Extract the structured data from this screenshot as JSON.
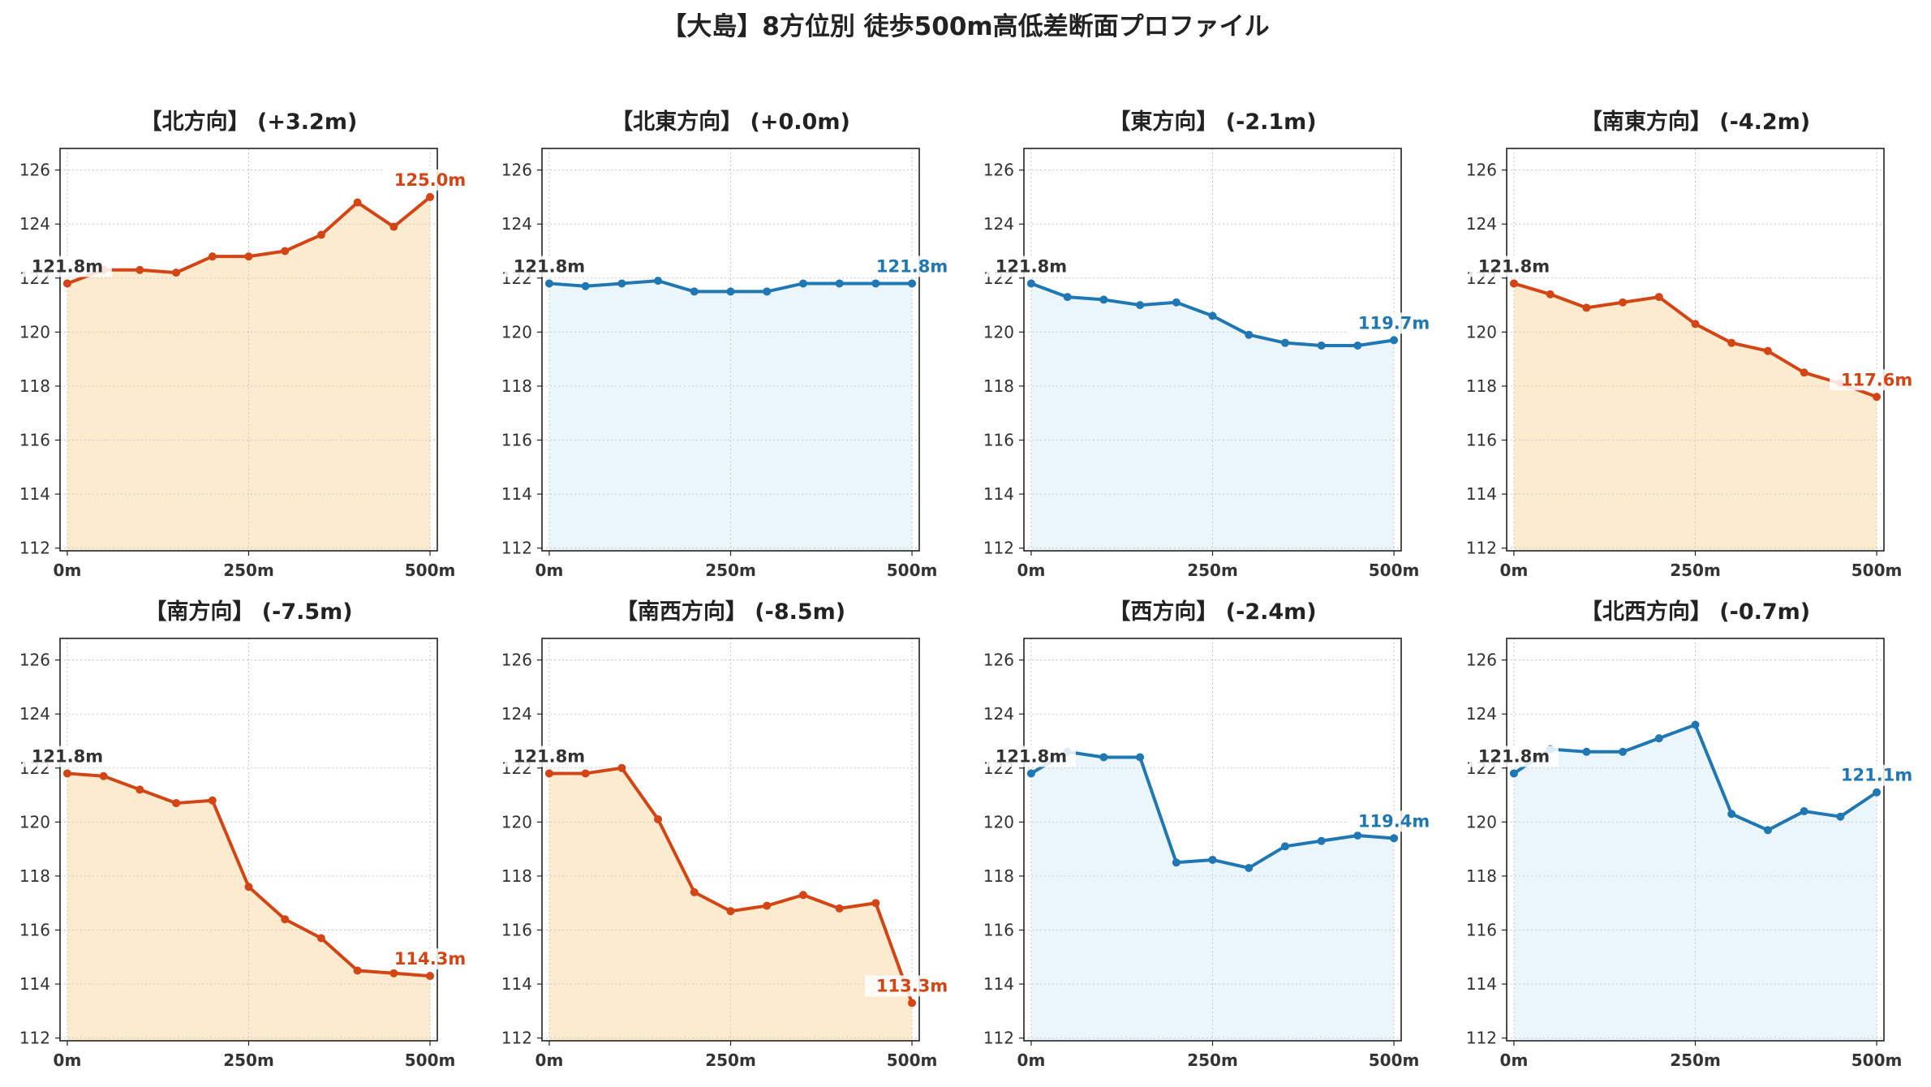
{
  "title": "【大島】8方位別 徒歩500m高低差断面プロファイル",
  "colors": {
    "up_line": "#d44515",
    "up_fill": "#fdebd0",
    "down_line": "#1f77b4",
    "down_fill": "#eaf6fb",
    "start_label": "#333333"
  },
  "chart_data": [
    {
      "type": "area",
      "title": "【北方向】 (+3.2m)",
      "trend": "up",
      "x": [
        0,
        50,
        100,
        150,
        200,
        250,
        300,
        350,
        400,
        450,
        500
      ],
      "y": [
        121.8,
        122.3,
        122.3,
        122.2,
        122.8,
        122.8,
        123.0,
        123.6,
        124.8,
        123.9,
        125.0
      ],
      "start_label": "121.8m",
      "end_label": "125.0m",
      "xticks": [
        "0m",
        "250m",
        "500m"
      ],
      "yticks": [
        112,
        114,
        116,
        118,
        120,
        122,
        124,
        126
      ],
      "ylim": [
        111.9,
        126.8
      ],
      "xlim": [
        -10,
        510
      ],
      "grid": true
    },
    {
      "type": "area",
      "title": "【北東方向】 (+0.0m)",
      "trend": "down",
      "x": [
        0,
        50,
        100,
        150,
        200,
        250,
        300,
        350,
        400,
        450,
        500
      ],
      "y": [
        121.8,
        121.7,
        121.8,
        121.9,
        121.5,
        121.5,
        121.5,
        121.8,
        121.8,
        121.8,
        121.8
      ],
      "start_label": "121.8m",
      "end_label": "121.8m",
      "xticks": [
        "0m",
        "250m",
        "500m"
      ],
      "yticks": [
        112,
        114,
        116,
        118,
        120,
        122,
        124,
        126
      ],
      "ylim": [
        111.9,
        126.8
      ],
      "xlim": [
        -10,
        510
      ],
      "grid": true
    },
    {
      "type": "area",
      "title": "【東方向】 (-2.1m)",
      "trend": "down",
      "x": [
        0,
        50,
        100,
        150,
        200,
        250,
        300,
        350,
        400,
        450,
        500
      ],
      "y": [
        121.8,
        121.3,
        121.2,
        121.0,
        121.1,
        120.6,
        119.9,
        119.6,
        119.5,
        119.5,
        119.7
      ],
      "start_label": "121.8m",
      "end_label": "119.7m",
      "xticks": [
        "0m",
        "250m",
        "500m"
      ],
      "yticks": [
        112,
        114,
        116,
        118,
        120,
        122,
        124,
        126
      ],
      "ylim": [
        111.9,
        126.8
      ],
      "xlim": [
        -10,
        510
      ],
      "grid": true
    },
    {
      "type": "area",
      "title": "【南東方向】 (-4.2m)",
      "trend": "up",
      "x": [
        0,
        50,
        100,
        150,
        200,
        250,
        300,
        350,
        400,
        450,
        500
      ],
      "y": [
        121.8,
        121.4,
        120.9,
        121.1,
        121.3,
        120.3,
        119.6,
        119.3,
        118.5,
        118.1,
        117.6
      ],
      "start_label": "121.8m",
      "end_label": "117.6m",
      "xticks": [
        "0m",
        "250m",
        "500m"
      ],
      "yticks": [
        112,
        114,
        116,
        118,
        120,
        122,
        124,
        126
      ],
      "ylim": [
        111.9,
        126.8
      ],
      "xlim": [
        -10,
        510
      ],
      "grid": true
    },
    {
      "type": "area",
      "title": "【南方向】 (-7.5m)",
      "trend": "up",
      "x": [
        0,
        50,
        100,
        150,
        200,
        250,
        300,
        350,
        400,
        450,
        500
      ],
      "y": [
        121.8,
        121.7,
        121.2,
        120.7,
        120.8,
        117.6,
        116.4,
        115.7,
        114.5,
        114.4,
        114.3
      ],
      "start_label": "121.8m",
      "end_label": "114.3m",
      "xticks": [
        "0m",
        "250m",
        "500m"
      ],
      "yticks": [
        112,
        114,
        116,
        118,
        120,
        122,
        124,
        126
      ],
      "ylim": [
        111.9,
        126.8
      ],
      "xlim": [
        -10,
        510
      ],
      "grid": true
    },
    {
      "type": "area",
      "title": "【南西方向】 (-8.5m)",
      "trend": "up",
      "x": [
        0,
        50,
        100,
        150,
        200,
        250,
        300,
        350,
        400,
        450,
        500
      ],
      "y": [
        121.8,
        121.8,
        122.0,
        120.1,
        117.4,
        116.7,
        116.9,
        117.3,
        116.8,
        117.0,
        113.3
      ],
      "start_label": "121.8m",
      "end_label": "113.3m",
      "xticks": [
        "0m",
        "250m",
        "500m"
      ],
      "yticks": [
        112,
        114,
        116,
        118,
        120,
        122,
        124,
        126
      ],
      "ylim": [
        111.9,
        126.8
      ],
      "xlim": [
        -10,
        510
      ],
      "grid": true
    },
    {
      "type": "area",
      "title": "【西方向】 (-2.4m)",
      "trend": "down",
      "x": [
        0,
        50,
        100,
        150,
        200,
        250,
        300,
        350,
        400,
        450,
        500
      ],
      "y": [
        121.8,
        122.6,
        122.4,
        122.4,
        118.5,
        118.6,
        118.3,
        119.1,
        119.3,
        119.5,
        119.4
      ],
      "start_label": "121.8m",
      "end_label": "119.4m",
      "xticks": [
        "0m",
        "250m",
        "500m"
      ],
      "yticks": [
        112,
        114,
        116,
        118,
        120,
        122,
        124,
        126
      ],
      "ylim": [
        111.9,
        126.8
      ],
      "xlim": [
        -10,
        510
      ],
      "grid": true
    },
    {
      "type": "area",
      "title": "【北西方向】 (-0.7m)",
      "trend": "down",
      "x": [
        0,
        50,
        100,
        150,
        200,
        250,
        300,
        350,
        400,
        450,
        500
      ],
      "y": [
        121.8,
        122.7,
        122.6,
        122.6,
        123.1,
        123.6,
        120.3,
        119.7,
        120.4,
        120.2,
        121.1
      ],
      "start_label": "121.8m",
      "end_label": "121.1m",
      "xticks": [
        "0m",
        "250m",
        "500m"
      ],
      "yticks": [
        112,
        114,
        116,
        118,
        120,
        122,
        124,
        126
      ],
      "ylim": [
        111.9,
        126.8
      ],
      "xlim": [
        -10,
        510
      ],
      "grid": true
    }
  ]
}
